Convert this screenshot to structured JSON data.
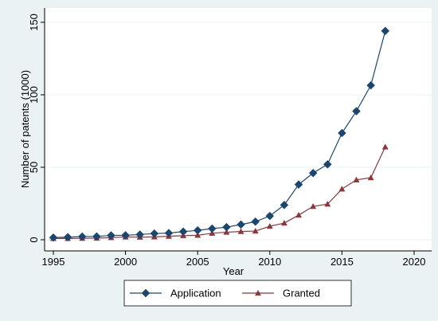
{
  "chart_data": {
    "type": "line",
    "title": "",
    "xlabel": "Year",
    "ylabel": "Number of patents (1000)",
    "xlim": [
      1995,
      2020
    ],
    "ylim": [
      0,
      150
    ],
    "xticks": [
      "1995",
      "2000",
      "2005",
      "2010",
      "2015",
      "2020"
    ],
    "yticks": [
      "0",
      "50",
      "100",
      "150"
    ],
    "grid": "horizontal",
    "legend_position": "bottom",
    "series": [
      {
        "name": "Application",
        "marker": "diamond",
        "color": "#1a476f",
        "x": [
          1995,
          1996,
          1997,
          1998,
          1999,
          2000,
          2001,
          2002,
          2003,
          2004,
          2005,
          2006,
          2007,
          2008,
          2009,
          2010,
          2011,
          2012,
          2013,
          2014,
          2015,
          2016,
          2017,
          2018
        ],
        "values": [
          1.5,
          1.8,
          2.2,
          2.3,
          3.0,
          3.1,
          3.6,
          4.3,
          4.6,
          5.6,
          6.5,
          7.7,
          8.7,
          10.5,
          12.5,
          16.4,
          24.0,
          38.1,
          46.0,
          52.0,
          73.6,
          88.7,
          106.5,
          144.0
        ]
      },
      {
        "name": "Granted",
        "marker": "triangle",
        "color": "#90353b",
        "x": [
          1995,
          1996,
          1997,
          1998,
          1999,
          2000,
          2001,
          2002,
          2003,
          2004,
          2005,
          2006,
          2007,
          2008,
          2009,
          2010,
          2011,
          2012,
          2013,
          2014,
          2015,
          2016,
          2017,
          2018
        ],
        "values": [
          0.9,
          0.9,
          1.0,
          1.1,
          1.5,
          1.9,
          1.8,
          2.0,
          2.4,
          2.8,
          3.1,
          4.5,
          5.2,
          5.7,
          6.0,
          9.3,
          11.5,
          17.0,
          23.0,
          24.6,
          35.0,
          41.3,
          42.8,
          64.0
        ]
      }
    ]
  }
}
